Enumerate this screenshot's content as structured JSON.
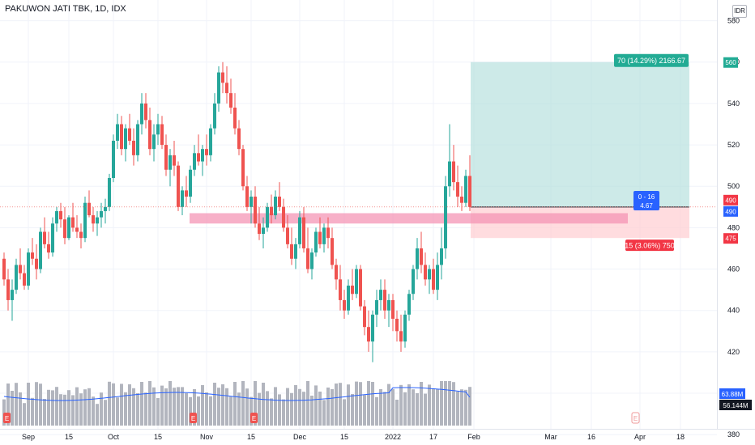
{
  "header": {
    "title": "PAKUWON JATI TBK, 1D, IDX",
    "currency": "IDR"
  },
  "colors": {
    "up": "#26a69a",
    "down": "#ef5350",
    "volume": "#b2b5be",
    "volume_ma": "#2962ff",
    "zone": "#f48fb1",
    "target": "#b2dfdb",
    "stop": "#ffcdd2",
    "grid": "#f0f3fa"
  },
  "chart_data": {
    "type": "candlestick",
    "ylim": [
      375,
      590
    ],
    "y_ticks": [
      380,
      400,
      420,
      440,
      460,
      480,
      500,
      520,
      540,
      560,
      580
    ],
    "x_ticks": [
      {
        "label": "Sep",
        "i": 6
      },
      {
        "label": "15",
        "i": 16
      },
      {
        "label": "Oct",
        "i": 27
      },
      {
        "label": "15",
        "i": 38
      },
      {
        "label": "Nov",
        "i": 50
      },
      {
        "label": "15",
        "i": 61
      },
      {
        "label": "Dec",
        "i": 73
      },
      {
        "label": "15",
        "i": 84
      },
      {
        "label": "2022",
        "i": 96
      },
      {
        "label": "17",
        "i": 106
      },
      {
        "label": "Feb",
        "i": 116
      },
      {
        "label": "Mar",
        "i": 135
      },
      {
        "label": "16",
        "i": 145
      },
      {
        "label": "Apr",
        "i": 157
      },
      {
        "label": "18",
        "i": 167
      }
    ],
    "candles": [
      [
        465,
        468,
        452,
        455
      ],
      [
        455,
        460,
        440,
        445
      ],
      [
        445,
        455,
        435,
        450
      ],
      [
        450,
        465,
        448,
        462
      ],
      [
        462,
        470,
        455,
        458
      ],
      [
        458,
        462,
        450,
        452
      ],
      [
        452,
        470,
        450,
        468
      ],
      [
        468,
        475,
        462,
        465
      ],
      [
        465,
        472,
        455,
        460
      ],
      [
        460,
        480,
        458,
        478
      ],
      [
        478,
        485,
        470,
        472
      ],
      [
        472,
        478,
        465,
        468
      ],
      [
        468,
        485,
        466,
        482
      ],
      [
        482,
        490,
        478,
        488
      ],
      [
        488,
        492,
        480,
        484
      ],
      [
        484,
        490,
        472,
        475
      ],
      [
        475,
        486,
        474,
        485
      ],
      [
        485,
        492,
        478,
        480
      ],
      [
        480,
        486,
        475,
        478
      ],
      [
        478,
        482,
        470,
        475
      ],
      [
        475,
        495,
        473,
        492
      ],
      [
        492,
        498,
        485,
        486
      ],
      [
        486,
        490,
        478,
        482
      ],
      [
        482,
        488,
        476,
        485
      ],
      [
        485,
        492,
        480,
        488
      ],
      [
        488,
        494,
        482,
        490
      ],
      [
        490,
        506,
        488,
        504
      ],
      [
        504,
        525,
        502,
        522
      ],
      [
        522,
        535,
        518,
        530
      ],
      [
        530,
        534,
        515,
        518
      ],
      [
        518,
        530,
        512,
        528
      ],
      [
        528,
        535,
        520,
        522
      ],
      [
        522,
        528,
        510,
        515
      ],
      [
        515,
        532,
        512,
        530
      ],
      [
        530,
        545,
        525,
        540
      ],
      [
        540,
        545,
        528,
        532
      ],
      [
        532,
        538,
        515,
        518
      ],
      [
        518,
        530,
        512,
        525
      ],
      [
        525,
        535,
        520,
        530
      ],
      [
        530,
        534,
        518,
        520
      ],
      [
        520,
        525,
        505,
        508
      ],
      [
        508,
        518,
        500,
        515
      ],
      [
        515,
        522,
        505,
        510
      ],
      [
        510,
        512,
        488,
        490
      ],
      [
        490,
        500,
        486,
        498
      ],
      [
        498,
        505,
        490,
        495
      ],
      [
        495,
        510,
        492,
        508
      ],
      [
        508,
        520,
        505,
        516
      ],
      [
        516,
        525,
        510,
        512
      ],
      [
        512,
        520,
        505,
        518
      ],
      [
        518,
        525,
        510,
        515
      ],
      [
        515,
        530,
        512,
        528
      ],
      [
        528,
        545,
        525,
        540
      ],
      [
        540,
        558,
        536,
        555
      ],
      [
        555,
        560,
        545,
        550
      ],
      [
        550,
        558,
        540,
        545
      ],
      [
        545,
        552,
        535,
        538
      ],
      [
        538,
        545,
        525,
        528
      ],
      [
        528,
        532,
        515,
        518
      ],
      [
        518,
        520,
        498,
        500
      ],
      [
        500,
        505,
        488,
        490
      ],
      [
        490,
        498,
        482,
        495
      ],
      [
        495,
        500,
        480,
        482
      ],
      [
        482,
        490,
        474,
        477
      ],
      [
        477,
        485,
        470,
        480
      ],
      [
        480,
        492,
        478,
        490
      ],
      [
        490,
        496,
        482,
        486
      ],
      [
        486,
        498,
        484,
        495
      ],
      [
        495,
        502,
        488,
        490
      ],
      [
        490,
        494,
        478,
        480
      ],
      [
        480,
        486,
        470,
        472
      ],
      [
        472,
        480,
        462,
        465
      ],
      [
        465,
        475,
        460,
        472
      ],
      [
        472,
        488,
        470,
        485
      ],
      [
        485,
        490,
        468,
        470
      ],
      [
        470,
        480,
        458,
        460
      ],
      [
        460,
        470,
        455,
        468
      ],
      [
        468,
        480,
        466,
        478
      ],
      [
        478,
        485,
        470,
        472
      ],
      [
        472,
        482,
        468,
        480
      ],
      [
        480,
        485,
        470,
        475
      ],
      [
        475,
        480,
        460,
        462
      ],
      [
        462,
        465,
        450,
        455
      ],
      [
        455,
        462,
        440,
        445
      ],
      [
        445,
        450,
        436,
        440
      ],
      [
        440,
        455,
        438,
        452
      ],
      [
        452,
        460,
        445,
        448
      ],
      [
        448,
        462,
        446,
        460
      ],
      [
        460,
        462,
        440,
        442
      ],
      [
        442,
        445,
        428,
        432
      ],
      [
        432,
        440,
        420,
        425
      ],
      [
        425,
        440,
        415,
        438
      ],
      [
        438,
        450,
        432,
        445
      ],
      [
        445,
        455,
        440,
        450
      ],
      [
        450,
        455,
        436,
        440
      ],
      [
        440,
        448,
        432,
        445
      ],
      [
        445,
        448,
        430,
        436
      ],
      [
        436,
        440,
        425,
        430
      ],
      [
        430,
        438,
        420,
        425
      ],
      [
        425,
        440,
        422,
        438
      ],
      [
        438,
        450,
        435,
        448
      ],
      [
        448,
        462,
        445,
        460
      ],
      [
        460,
        475,
        455,
        470
      ],
      [
        470,
        478,
        458,
        462
      ],
      [
        462,
        468,
        452,
        455
      ],
      [
        455,
        462,
        448,
        460
      ],
      [
        460,
        465,
        448,
        450
      ],
      [
        450,
        468,
        445,
        462
      ],
      [
        462,
        480,
        455,
        470
      ],
      [
        470,
        505,
        465,
        500
      ],
      [
        500,
        530,
        495,
        512
      ],
      [
        512,
        520,
        498,
        502
      ],
      [
        502,
        510,
        490,
        495
      ],
      [
        495,
        500,
        488,
        492
      ],
      [
        492,
        508,
        490,
        505
      ],
      [
        505,
        515,
        488,
        490
      ]
    ],
    "volume_ma_values": [
      63.88,
      56.144
    ],
    "volume_labels": [
      "63.88M",
      "56.144M"
    ],
    "support_zone": {
      "low": 482,
      "high": 487
    },
    "position": {
      "entry": 490,
      "target": 560,
      "stop": 475,
      "target_label": "70 (14.29%) 2166.67",
      "stop_label": "15 (3.06%) 750",
      "ratio_line1": "0 - 16",
      "ratio_line2": "4.67"
    },
    "price_tags": [
      "560",
      "490",
      "490",
      "475"
    ],
    "event_marker": "E"
  }
}
